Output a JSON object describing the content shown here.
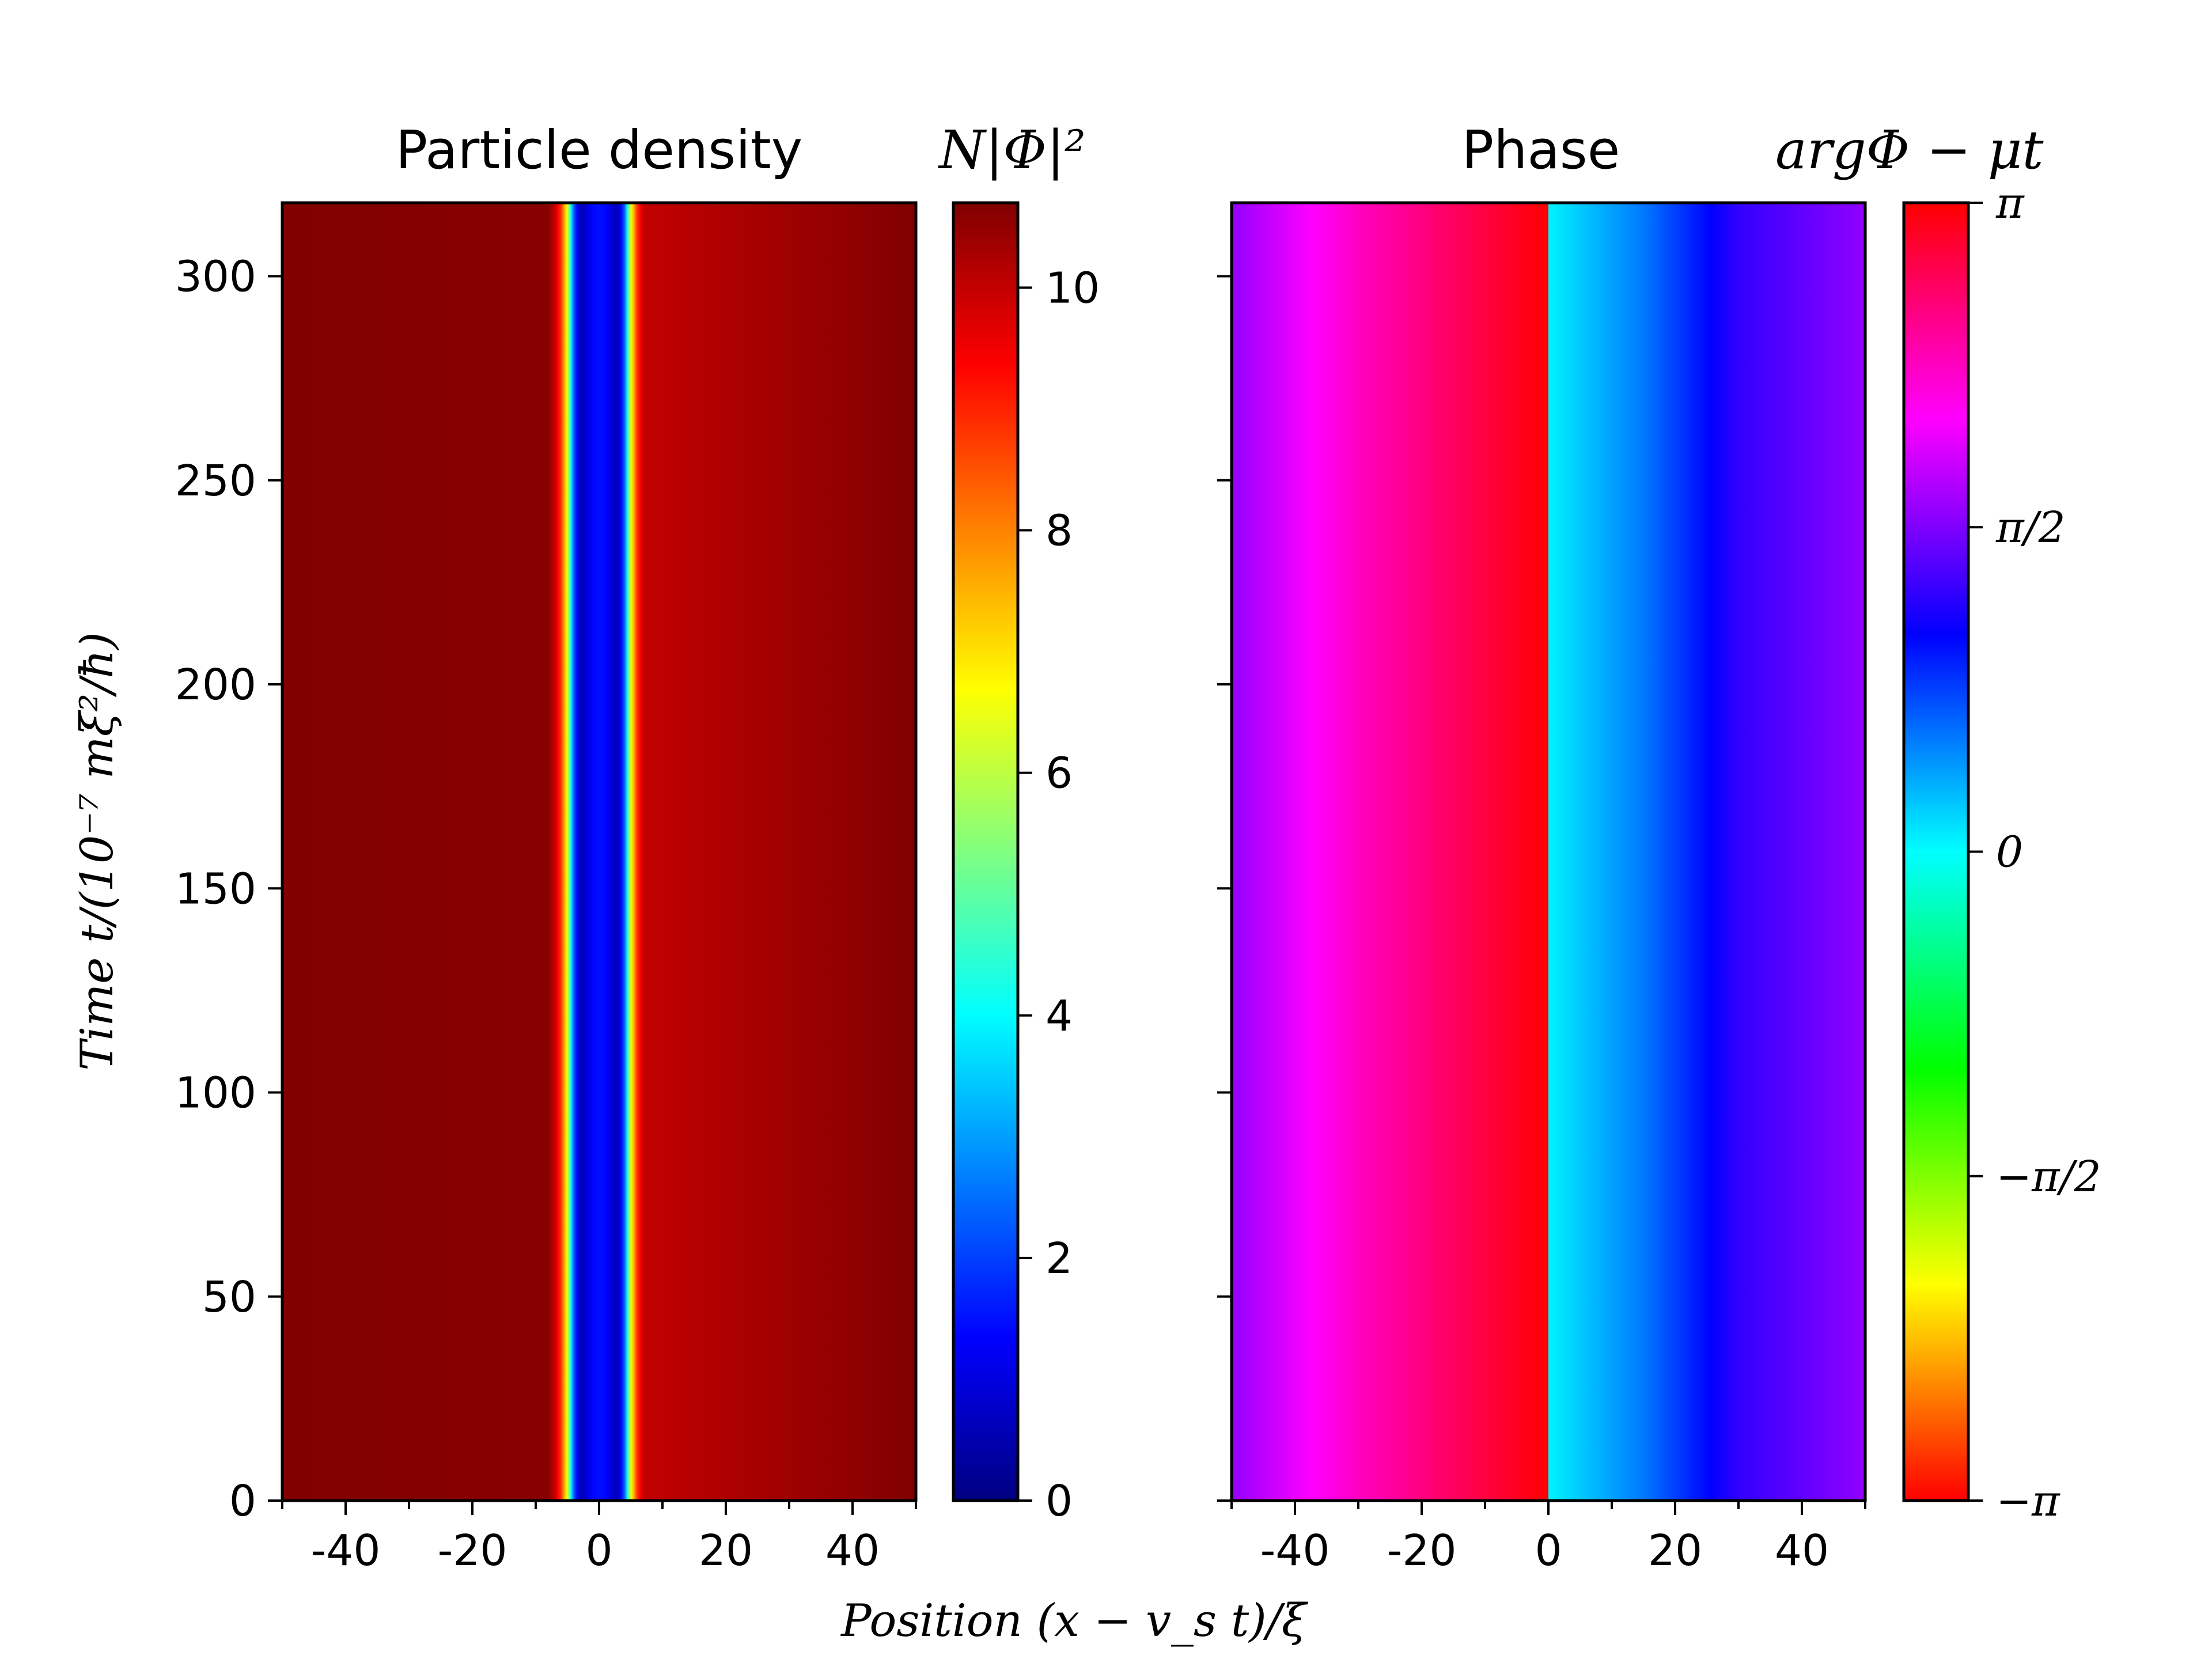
{
  "chart_data": [
    {
      "type": "heatmap",
      "title": "Particle density",
      "colorbar_label": "N|Φ|²",
      "xlabel": "Position (x − v_s t)/ξ",
      "ylabel": "Time t/(10⁻⁷ mξ²/ħ)",
      "xlim": [
        -50,
        50
      ],
      "ylim": [
        0,
        318
      ],
      "x_ticks": [
        -40,
        -20,
        0,
        20,
        40
      ],
      "x_tick_labels": [
        "-40",
        "-20",
        "0",
        "20",
        "40"
      ],
      "y_ticks": [
        0,
        50,
        100,
        150,
        200,
        250,
        300
      ],
      "y_tick_labels": [
        "0",
        "50",
        "100",
        "150",
        "200",
        "250",
        "300"
      ],
      "colormap": "jet",
      "clim": [
        0,
        10.7
      ],
      "colorbar_ticks": [
        0,
        2,
        4,
        6,
        8,
        10
      ],
      "colorbar_tick_labels": [
        "0",
        "2",
        "4",
        "6",
        "8",
        "10"
      ],
      "profile": {
        "note": "density constant in time",
        "x": [
          -50,
          -8,
          -7,
          -6,
          -5,
          -4,
          -3,
          -2,
          -1,
          0,
          1,
          2,
          3,
          4,
          5,
          6,
          7,
          50
        ],
        "values": [
          10.7,
          10.6,
          10.0,
          8.8,
          6.4,
          2.3,
          0.6,
          0.9,
          1.4,
          1.5,
          1.4,
          0.9,
          0.6,
          2.3,
          6.4,
          8.8,
          10.0,
          10.7
        ]
      }
    },
    {
      "type": "heatmap",
      "title": "Phase",
      "colorbar_label": "argΦ − μt",
      "xlim": [
        -50,
        50
      ],
      "ylim": [
        0,
        318
      ],
      "x_ticks": [
        -40,
        -20,
        0,
        20,
        40
      ],
      "x_tick_labels": [
        "-40",
        "-20",
        "0",
        "20",
        "40"
      ],
      "y_ticks": [
        0,
        50,
        100,
        150,
        200,
        250,
        300
      ],
      "colormap": "hsv",
      "clim": [
        -3.14159,
        3.14159
      ],
      "colorbar_ticks": [
        -3.14159,
        -1.5708,
        0,
        1.5708,
        3.14159
      ],
      "colorbar_tick_labels": [
        "−π",
        "−π/2",
        "0",
        "π/2",
        "π"
      ],
      "profile": {
        "note": "phase constant in time",
        "x": [
          -50,
          -30,
          -15,
          0,
          0.01,
          15,
          30,
          50
        ],
        "values": [
          1.65,
          2.35,
          2.75,
          3.14159,
          0.05,
          0.55,
          1.25,
          1.65
        ]
      }
    }
  ]
}
